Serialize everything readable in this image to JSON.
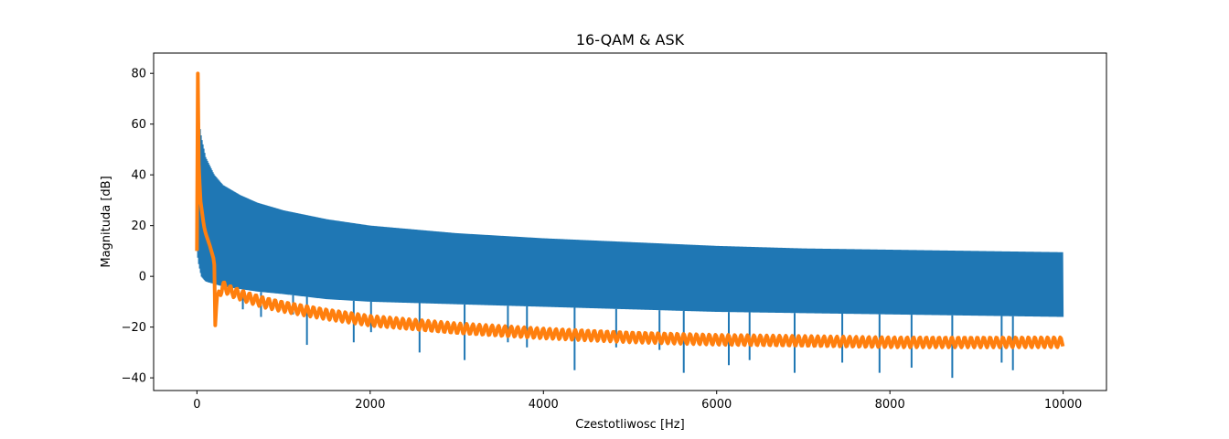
{
  "chart_data": {
    "type": "line",
    "title": "16-QAM & ASK",
    "xlabel": "Czestotliwosc [Hz]",
    "ylabel": "Magnituda [dB]",
    "xlim": [
      -500,
      10500
    ],
    "ylim": [
      -45,
      88
    ],
    "xticks": [
      0,
      2000,
      4000,
      6000,
      8000,
      10000
    ],
    "yticks": [
      -40,
      -20,
      0,
      20,
      40,
      60,
      80
    ],
    "grid": false,
    "legend": "none",
    "series": [
      {
        "color": "#1f77b4",
        "envelope_x": [
          0,
          20,
          50,
          100,
          200,
          300,
          500,
          700,
          1000,
          1500,
          2000,
          3000,
          4000,
          5000,
          6000,
          7000,
          8000,
          9000,
          10000
        ],
        "envelope_upper": [
          65,
          62,
          55,
          47,
          40,
          36,
          32,
          29,
          26,
          22.5,
          20,
          17,
          15,
          13.5,
          12,
          11,
          10.5,
          10,
          9.5
        ],
        "envelope_lower": [
          10,
          5,
          0,
          -2,
          -3,
          -4,
          -5,
          -6,
          -7,
          -9,
          -10,
          -11,
          -12,
          -13,
          -14,
          -14.5,
          -15,
          -15.5,
          -16
        ],
        "dips_x": [
          140,
          530,
          740,
          1110,
          1270,
          1810,
          2010,
          2570,
          3090,
          3590,
          3810,
          4360,
          4840,
          5340,
          5620,
          6140,
          6380,
          6900,
          7450,
          7880,
          8250,
          8720,
          9290,
          9420
        ],
        "dips_y": [
          -2,
          -13,
          -16,
          -15,
          -27,
          -26,
          -22,
          -30,
          -33,
          -26,
          -28,
          -37,
          -28,
          -29,
          -38,
          -35,
          -33,
          -38,
          -34,
          -38,
          -36,
          -40,
          -34,
          -37
        ]
      },
      {
        "color": "#ff7f0e",
        "x": [
          0,
          10,
          20,
          40,
          60,
          80,
          100,
          150,
          200,
          210,
          230,
          300,
          400,
          600,
          800,
          1000,
          1500,
          2000,
          3000,
          4000,
          5000,
          6000,
          7000,
          8000,
          9000,
          10000
        ],
        "y": [
          10,
          82,
          45,
          30,
          25,
          20,
          17,
          12,
          6,
          -20,
          -8,
          -4,
          -6,
          -8.5,
          -10.5,
          -12,
          -15,
          -17.5,
          -20.5,
          -22.5,
          -24,
          -25,
          -25.5,
          -26,
          -26,
          -26
        ],
        "band_half_width": 2
      }
    ]
  }
}
